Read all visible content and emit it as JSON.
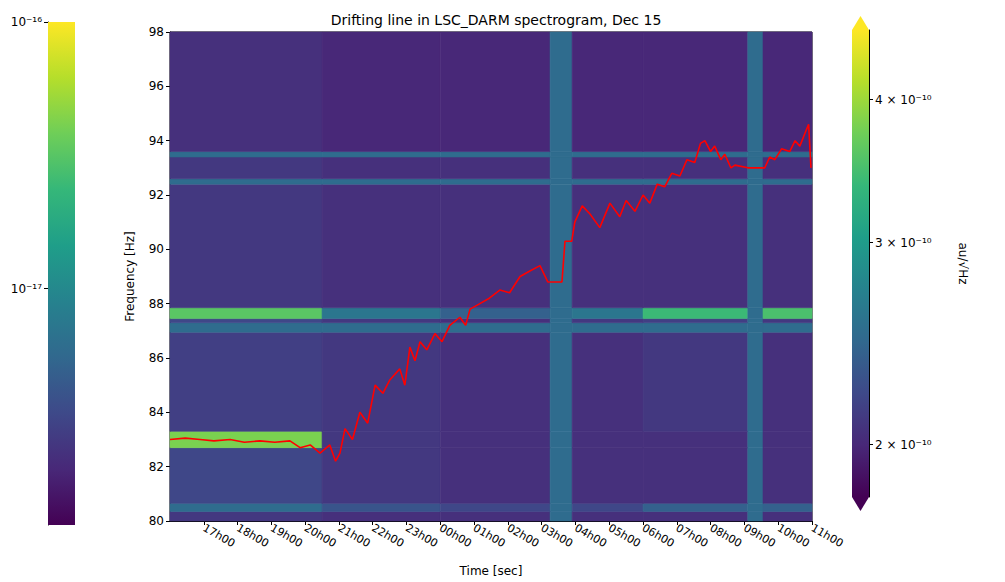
{
  "chart_data": {
    "type": "heatmap",
    "title": "Drifting line in LSC_DARM spectrogram, Dec 15",
    "x_label": "Time [sec]",
    "y_label": "Frequency [Hz]",
    "xlim": [
      16,
      35
    ],
    "ylim": [
      80,
      98
    ],
    "xticks": [
      {
        "value": 17,
        "label": "17h00"
      },
      {
        "value": 18,
        "label": "18h00"
      },
      {
        "value": 19,
        "label": "19h00"
      },
      {
        "value": 20,
        "label": "20h00"
      },
      {
        "value": 21,
        "label": "21h00"
      },
      {
        "value": 22,
        "label": "22h00"
      },
      {
        "value": 23,
        "label": "23h00"
      },
      {
        "value": 24,
        "label": "00h00"
      },
      {
        "value": 25,
        "label": "01h00"
      },
      {
        "value": 26,
        "label": "02h00"
      },
      {
        "value": 27,
        "label": "03h00"
      },
      {
        "value": 28,
        "label": "04h00"
      },
      {
        "value": 29,
        "label": "05h00"
      },
      {
        "value": 30,
        "label": "06h00"
      },
      {
        "value": 31,
        "label": "07h00"
      },
      {
        "value": 32,
        "label": "08h00"
      },
      {
        "value": 33,
        "label": "09h00"
      },
      {
        "value": 34,
        "label": "10h00"
      },
      {
        "value": 35,
        "label": "11h00"
      }
    ],
    "yticks": [
      80,
      82,
      84,
      86,
      88,
      90,
      92,
      94,
      96,
      98
    ],
    "grid": false,
    "time_bins": [
      16,
      20.5,
      24,
      27.25,
      27.9,
      30,
      33.1,
      33.55,
      35
    ],
    "freq_bins": [
      80,
      80.35,
      80.65,
      82.7,
      83.3,
      86.95,
      87.3,
      87.45,
      87.85,
      92.4,
      92.6,
      93.4,
      93.6,
      98
    ],
    "cells": [
      [
        2.1e-10,
        2.05e-10,
        2.05e-10,
        2.5e-10,
        2.05e-10,
        2.05e-10,
        2.5e-10,
        2.05e-10
      ],
      [
        2.5e-10,
        2.3e-10,
        2.2e-10,
        2.5e-10,
        2.2e-10,
        2.4e-10,
        2.5e-10,
        2.4e-10
      ],
      [
        2.2e-10,
        2.1e-10,
        2.05e-10,
        2.5e-10,
        2.05e-10,
        2.05e-10,
        2.5e-10,
        2.05e-10
      ],
      [
        3.8e-10,
        2.1e-10,
        2.05e-10,
        2.5e-10,
        2.05e-10,
        2.05e-10,
        2.5e-10,
        2.05e-10
      ],
      [
        2.15e-10,
        2.1e-10,
        2.05e-10,
        2.5e-10,
        2.05e-10,
        2.1e-10,
        2.5e-10,
        2.05e-10
      ],
      [
        2.5e-10,
        2.5e-10,
        2.5e-10,
        2.5e-10,
        2.5e-10,
        2.5e-10,
        2.5e-10,
        2.5e-10
      ],
      [
        2.2e-10,
        2.1e-10,
        2.05e-10,
        2.5e-10,
        2.1e-10,
        2.15e-10,
        2.5e-10,
        2.1e-10
      ],
      [
        3.6e-10,
        2.6e-10,
        2.4e-10,
        2.5e-10,
        2.6e-10,
        3.4e-10,
        2.5e-10,
        3.5e-10
      ],
      [
        2.1e-10,
        2.05e-10,
        2.05e-10,
        2.5e-10,
        2.05e-10,
        2.05e-10,
        2.5e-10,
        2.05e-10
      ],
      [
        2.5e-10,
        2.5e-10,
        2.5e-10,
        2.5e-10,
        2.5e-10,
        2.5e-10,
        2.5e-10,
        2.5e-10
      ],
      [
        2.1e-10,
        2.05e-10,
        2.05e-10,
        2.5e-10,
        2.05e-10,
        2.05e-10,
        2.5e-10,
        2.05e-10
      ],
      [
        2.5e-10,
        2.5e-10,
        2.5e-10,
        2.5e-10,
        2.5e-10,
        2.5e-10,
        2.5e-10,
        2.5e-10
      ],
      [
        2.05e-10,
        2e-10,
        2e-10,
        2.5e-10,
        2e-10,
        2e-10,
        2.5e-10,
        2e-10
      ]
    ],
    "colorbar": {
      "label": "au/√Hz",
      "log": true,
      "range": [
        1.8e-10,
        4.6e-10
      ],
      "ticks": [
        {
          "value": 2e-10,
          "label": "2 × 10⁻¹⁰"
        },
        {
          "value": 3e-10,
          "label": "3 × 10⁻¹⁰"
        },
        {
          "value": 4e-10,
          "label": "4 × 10⁻¹⁰"
        }
      ]
    },
    "left_colorbar": {
      "log": true,
      "range": [
        1.3e-18,
        1e-16
      ],
      "ticks": [
        {
          "value": 1e-17,
          "label": "10⁻¹⁷"
        },
        {
          "value": 1e-16,
          "label": "10⁻¹⁶"
        }
      ]
    },
    "series": [
      {
        "type": "line",
        "color": "#ff0000",
        "x": [
          16.0,
          16.45,
          16.89,
          17.3,
          17.78,
          18.2,
          18.66,
          19.1,
          19.55,
          19.85,
          20.15,
          20.44,
          20.73,
          20.9,
          21.03,
          21.18,
          21.4,
          21.62,
          21.85,
          22.07,
          22.3,
          22.51,
          22.8,
          22.95,
          23.1,
          23.25,
          23.4,
          23.6,
          23.84,
          24.05,
          24.28,
          24.58,
          24.75,
          24.88,
          25.17,
          25.45,
          25.76,
          26.05,
          26.36,
          26.65,
          26.95,
          27.18,
          27.6,
          27.69,
          27.89,
          27.98,
          28.2,
          28.43,
          28.72,
          29.02,
          29.31,
          29.5,
          29.76,
          30.0,
          30.2,
          30.42,
          30.64,
          30.85,
          31.09,
          31.3,
          31.53,
          31.7,
          31.83,
          32.0,
          32.12,
          32.3,
          32.42,
          32.6,
          32.72,
          33.1,
          33.6,
          33.75,
          33.9,
          34.1,
          34.34,
          34.5,
          34.64,
          34.8,
          34.9,
          34.97
        ],
        "values": [
          83.0,
          83.05,
          83.0,
          82.95,
          83.0,
          82.9,
          82.95,
          82.9,
          82.95,
          82.7,
          82.8,
          82.5,
          82.8,
          82.2,
          82.5,
          83.4,
          83.0,
          84.0,
          83.6,
          85.0,
          84.7,
          85.2,
          85.6,
          85.0,
          86.4,
          85.9,
          86.6,
          86.3,
          86.9,
          86.6,
          87.2,
          87.5,
          87.2,
          87.8,
          88.0,
          88.2,
          88.5,
          88.4,
          89.0,
          89.2,
          89.4,
          88.8,
          88.8,
          90.3,
          90.3,
          91.0,
          91.6,
          91.3,
          90.8,
          91.7,
          91.2,
          91.8,
          91.4,
          92.0,
          91.7,
          92.4,
          92.3,
          92.8,
          92.7,
          93.3,
          93.2,
          93.9,
          94.0,
          93.6,
          93.8,
          93.3,
          93.5,
          93.0,
          93.1,
          93.0,
          93.0,
          93.4,
          93.3,
          93.7,
          93.6,
          94.0,
          93.8,
          94.3,
          94.6,
          93.0
        ]
      }
    ]
  }
}
